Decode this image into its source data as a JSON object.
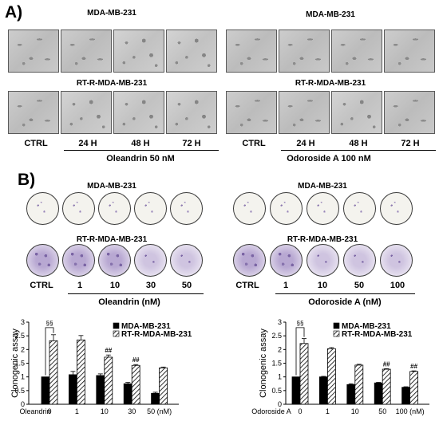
{
  "panel_a": {
    "letter": "A)",
    "left": {
      "top_line": "MDA-MB-231",
      "bottom_line": "RT-R-MDA-MB-231",
      "timepoints": [
        "CTRL",
        "24 H",
        "48 H",
        "72 H"
      ],
      "treatment": "Oleandrin  50 nM"
    },
    "right": {
      "top_line": "MDA-MB-231",
      "bottom_line": "RT-R-MDA-MB-231",
      "timepoints": [
        "CTRL",
        "24 H",
        "48 H",
        "72 H"
      ],
      "treatment": "Odoroside A 100 nM"
    }
  },
  "panel_b": {
    "letter": "B)",
    "left": {
      "top_line": "MDA-MB-231",
      "bottom_line": "RT-R-MDA-MB-231",
      "doses": [
        "CTRL",
        "1",
        "10",
        "30",
        "50"
      ],
      "treatment": "Oleandrin (nM)"
    },
    "right": {
      "top_line": "MDA-MB-231",
      "bottom_line": "RT-R-MDA-MB-231",
      "doses": [
        "CTRL",
        "1",
        "10",
        "50",
        "100"
      ],
      "treatment": "Odoroside A (nM)"
    }
  },
  "colors": {
    "bar_solid": "#000000",
    "bar_hatched": "#ffffff",
    "colony_stain": "#7a64a4"
  },
  "chart_data": [
    {
      "type": "bar",
      "title": "",
      "xlabel": "Oleandrin",
      "ylabel": "Clonogenic assay",
      "categories": [
        "0",
        "1",
        "10",
        "30",
        "50 (nM)"
      ],
      "ylim": [
        0,
        3
      ],
      "yticks": [
        "0",
        "0.5",
        "1",
        "1.5",
        "2",
        "2.5",
        "3"
      ],
      "series": [
        {
          "name": "MDA-MB-231",
          "fill": "solid",
          "values": [
            1.0,
            1.08,
            1.05,
            0.75,
            0.4
          ],
          "errors": [
            0.0,
            0.12,
            0.06,
            0.05,
            0.04
          ]
        },
        {
          "name": "RT-R-MDA-MB-231",
          "fill": "hatched",
          "values": [
            2.32,
            2.35,
            1.72,
            1.42,
            1.33
          ],
          "errors": [
            0.22,
            0.16,
            0.08,
            0.03,
            0.03
          ]
        }
      ],
      "annotations": {
        "bracket": "§§",
        "solid_marks": [
          "",
          "",
          "",
          "*",
          "**"
        ],
        "hatched_marks": [
          "",
          "",
          "##",
          "##",
          ""
        ]
      },
      "legend": "top-right"
    },
    {
      "type": "bar",
      "title": "",
      "xlabel": "Odoroside A",
      "ylabel": "Clonogenic assay",
      "categories": [
        "0",
        "1",
        "10",
        "50",
        "100 (nM)"
      ],
      "ylim": [
        0,
        3
      ],
      "yticks": [
        "0",
        "0.5",
        "1",
        "1.5",
        "2",
        "2.5",
        "3"
      ],
      "series": [
        {
          "name": "MDA-MB-231",
          "fill": "solid",
          "values": [
            1.0,
            1.0,
            0.72,
            0.78,
            0.62
          ],
          "errors": [
            0.0,
            0.02,
            0.03,
            0.02,
            0.02
          ]
        },
        {
          "name": "RT-R-MDA-MB-231",
          "fill": "hatched",
          "values": [
            2.22,
            2.03,
            1.43,
            1.28,
            1.2
          ],
          "errors": [
            0.18,
            0.04,
            0.03,
            0.02,
            0.02
          ]
        }
      ],
      "annotations": {
        "bracket": "§§",
        "solid_marks": [
          "",
          "",
          "**",
          "**",
          "**"
        ],
        "hatched_marks": [
          "",
          "",
          "",
          "##",
          "##"
        ]
      },
      "legend": "top-right"
    }
  ]
}
